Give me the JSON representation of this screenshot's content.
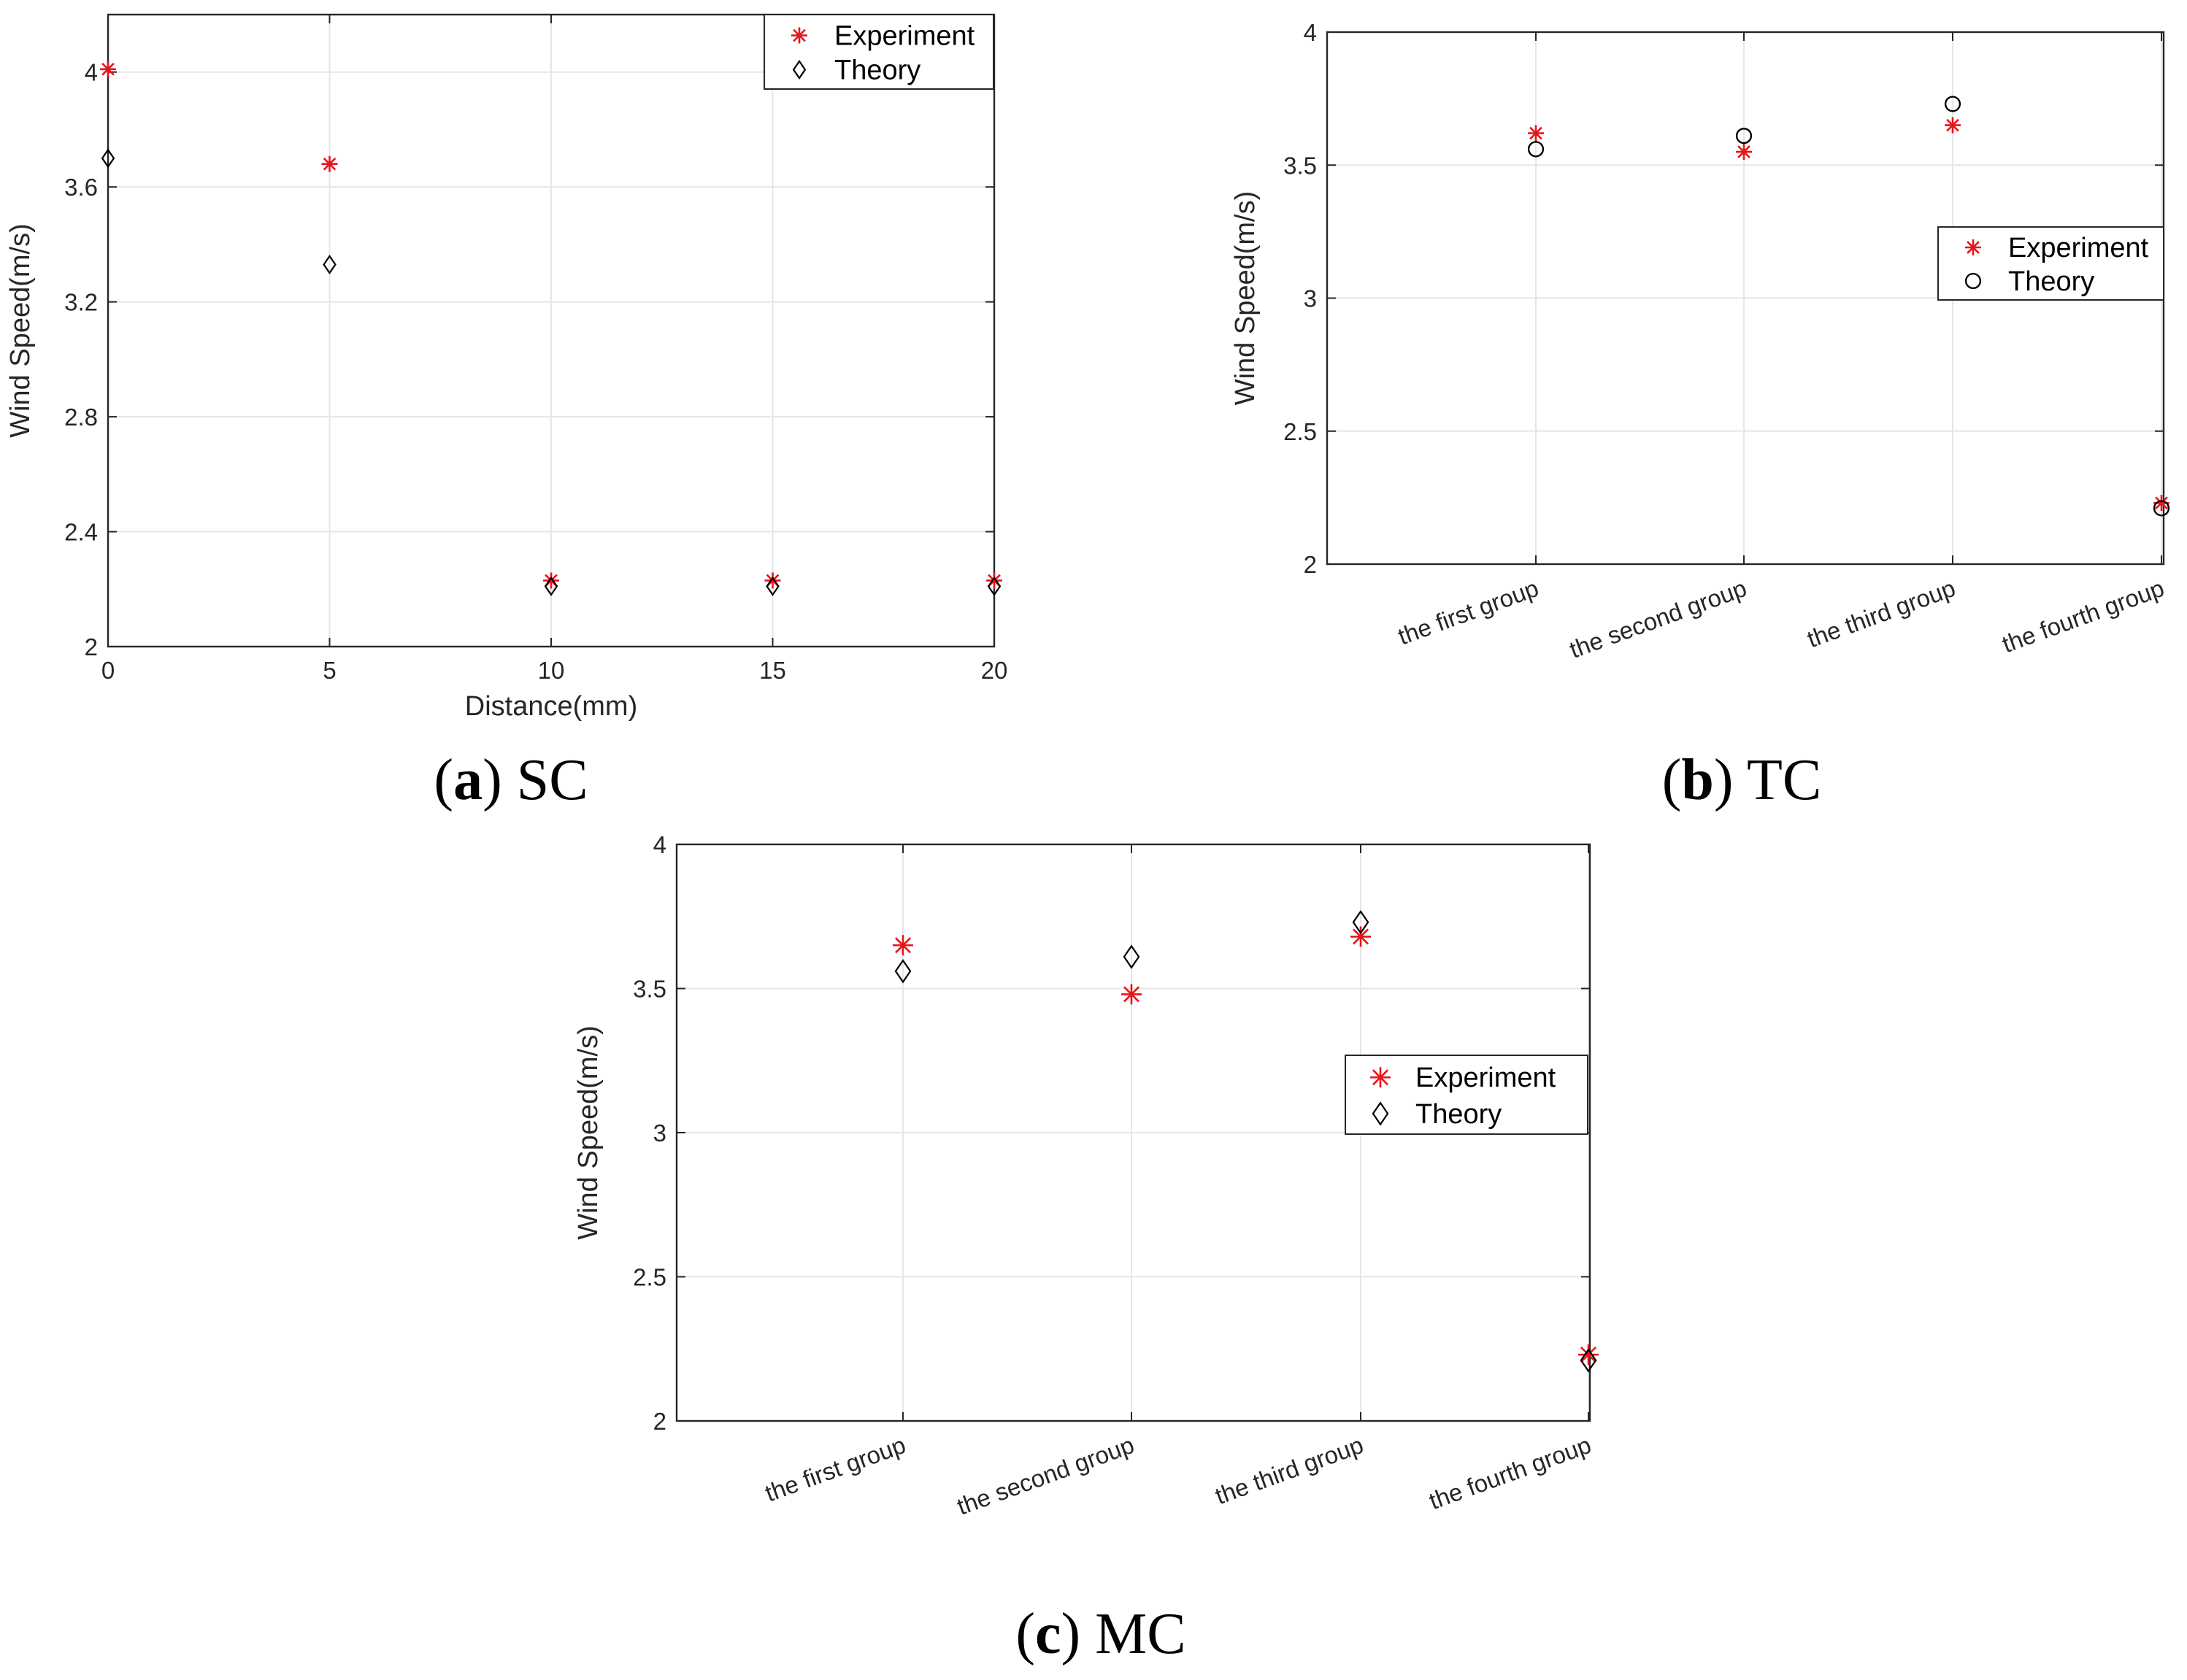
{
  "colors": {
    "experiment": "#e8141b",
    "theory": "#000000",
    "grid": "#e6e6e6",
    "axis": "#262626"
  },
  "chart_data": [
    {
      "id": "a",
      "type": "scatter",
      "caption_letter": "a",
      "caption_text": "SC",
      "xlabel": "Distance(mm)",
      "ylabel": "Wind Speed(m/s)",
      "xlim": [
        0,
        20
      ],
      "ylim": [
        2,
        4.2
      ],
      "xticks": [
        0,
        5,
        10,
        15,
        20
      ],
      "xtick_labels": [
        "0",
        "5",
        "10",
        "15",
        "20"
      ],
      "yticks": [
        2,
        2.4,
        2.8,
        3.2,
        3.6,
        4
      ],
      "ytick_labels": [
        "2",
        "2.4",
        "2.8",
        "3.2",
        "3.6",
        "4"
      ],
      "legend": {
        "position": "top-right",
        "entries": [
          "Experiment",
          "Theory"
        ]
      },
      "series": [
        {
          "name": "Experiment",
          "marker": "asterisk",
          "x": [
            0,
            5,
            10,
            15,
            20
          ],
          "values": [
            4.01,
            3.68,
            2.23,
            2.23,
            2.23
          ]
        },
        {
          "name": "Theory",
          "marker": "diamond",
          "x": [
            0,
            5,
            10,
            15,
            20
          ],
          "values": [
            3.7,
            3.33,
            2.21,
            2.21,
            2.21
          ]
        }
      ]
    },
    {
      "id": "b",
      "type": "scatter",
      "caption_letter": "b",
      "caption_text": "TC",
      "xlabel": "",
      "ylabel": "Wind Speed(m/s)",
      "categories": [
        "the first group",
        "the second group",
        "the third group",
        "the fourth group"
      ],
      "ylim": [
        2,
        4
      ],
      "yticks": [
        2,
        2.5,
        3,
        3.5,
        4
      ],
      "ytick_labels": [
        "2",
        "2.5",
        "3",
        "3.5",
        "4"
      ],
      "legend": {
        "position": "right",
        "entries": [
          "Experiment",
          "Theory"
        ]
      },
      "series": [
        {
          "name": "Experiment",
          "marker": "asterisk",
          "values": [
            3.62,
            3.55,
            3.65,
            2.23
          ]
        },
        {
          "name": "Theory",
          "marker": "circle",
          "values": [
            3.56,
            3.61,
            3.73,
            2.21
          ]
        }
      ]
    },
    {
      "id": "c",
      "type": "scatter",
      "caption_letter": "c",
      "caption_text": "MC",
      "xlabel": "",
      "ylabel": "Wind Speed(m/s)",
      "categories": [
        "the first group",
        "the second group",
        "the third group",
        "the fourth group"
      ],
      "ylim": [
        2,
        4
      ],
      "yticks": [
        2,
        2.5,
        3,
        3.5,
        4
      ],
      "ytick_labels": [
        "2",
        "2.5",
        "3",
        "3.5",
        "4"
      ],
      "legend": {
        "position": "right",
        "entries": [
          "Experiment",
          "Theory"
        ]
      },
      "series": [
        {
          "name": "Experiment",
          "marker": "asterisk",
          "values": [
            3.65,
            3.48,
            3.68,
            2.23
          ]
        },
        {
          "name": "Theory",
          "marker": "diamond",
          "values": [
            3.56,
            3.61,
            3.73,
            2.21
          ]
        }
      ]
    }
  ]
}
